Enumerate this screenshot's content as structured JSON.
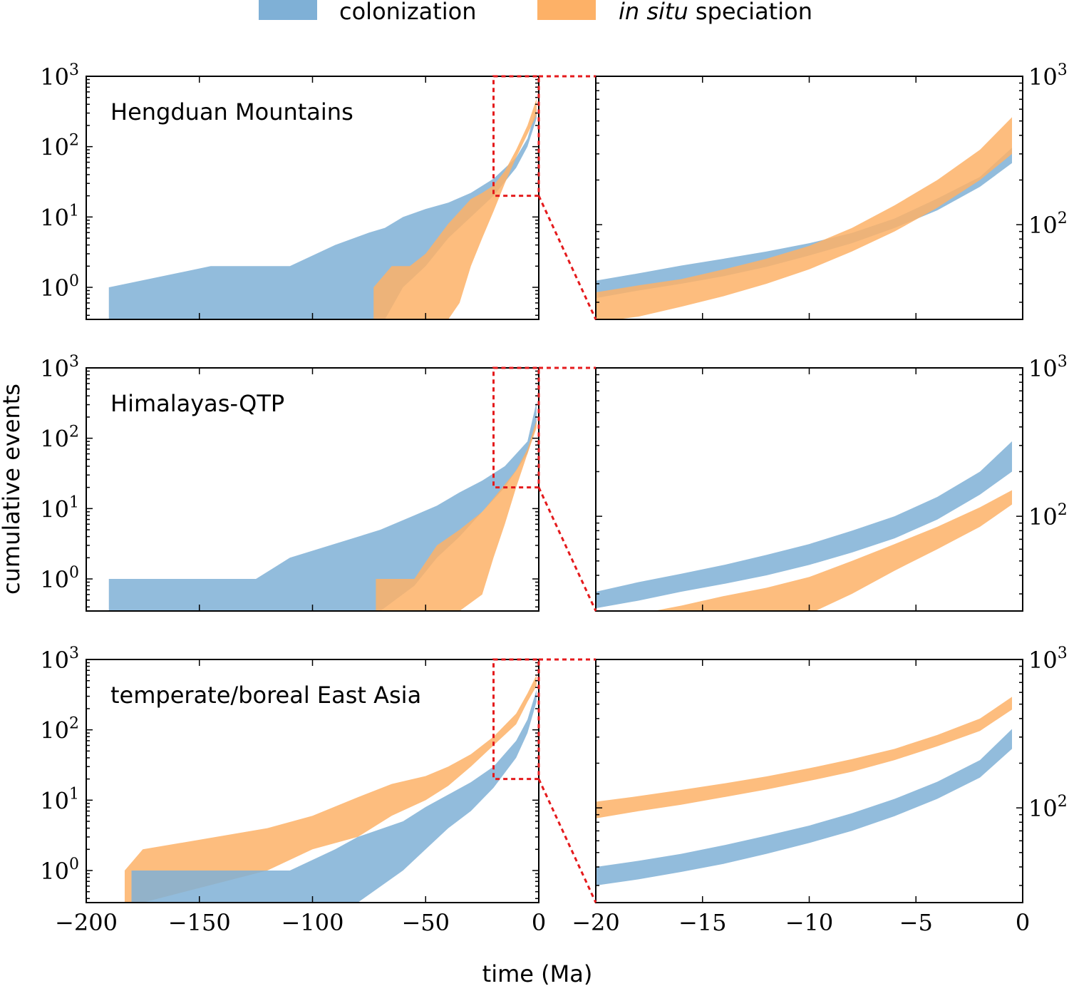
{
  "colors": {
    "colonization": "#7fb0d6",
    "speciation": "#fdb167",
    "zoom_line": "#e41a1c",
    "axis": "#000000"
  },
  "legend": {
    "items": [
      {
        "key": "colonization",
        "label": "colonization"
      },
      {
        "key": "speciation",
        "label_italic": "in situ",
        "label_rest": " speciation"
      }
    ]
  },
  "axes_labels": {
    "ylabel": "cumulative events",
    "xlabel": "time (Ma)"
  },
  "chart_data": {
    "type": "area",
    "y_scale": "log",
    "left_xlim": [
      -200,
      0
    ],
    "right_xlim": [
      -20,
      0
    ],
    "left_ylim": [
      0.35,
      1000
    ],
    "right_ylim": [
      23,
      1000
    ],
    "left_xticks": [
      -200,
      -150,
      -100,
      -50,
      0
    ],
    "right_xticks": [
      -20,
      -15,
      -10,
      -5,
      0
    ],
    "left_xtick_labels": [
      "−200",
      "−150",
      "−100",
      "−50",
      "0"
    ],
    "right_xtick_labels": [
      "−20",
      "−15",
      "−10",
      "−5",
      "0"
    ],
    "left_yticks": [
      1,
      10,
      100,
      1000
    ],
    "left_ytick_labels": [
      {
        "base": "10",
        "exp": "0"
      },
      {
        "base": "10",
        "exp": "1"
      },
      {
        "base": "10",
        "exp": "2"
      },
      {
        "base": "10",
        "exp": "3"
      }
    ],
    "right_yticks": [
      100,
      1000
    ],
    "right_ytick_labels": [
      {
        "base": "10",
        "exp": "2"
      },
      {
        "base": "10",
        "exp": "3"
      }
    ],
    "zoom_box": {
      "x": [
        -20,
        0
      ],
      "y": [
        20,
        1000
      ]
    },
    "panels": [
      {
        "region": "Hengduan Mountains",
        "colonization": {
          "x": [
            -190,
            -145,
            -110,
            -90,
            -75,
            -68,
            -60,
            -50,
            -40,
            -30,
            -20,
            -10,
            -5,
            -1
          ],
          "lower": [
            0.35,
            0.35,
            0.35,
            0.35,
            0.35,
            0.35,
            1,
            2,
            5,
            10,
            20,
            50,
            100,
            250
          ],
          "upper": [
            1,
            2,
            2,
            4,
            6,
            7,
            10,
            13,
            16,
            22,
            35,
            70,
            130,
            350
          ]
        },
        "speciation": {
          "x": [
            -73,
            -65,
            -57,
            -50,
            -40,
            -35,
            -30,
            -25,
            -20,
            -15,
            -10,
            -5,
            -1
          ],
          "lower": [
            0.35,
            0.35,
            0.35,
            0.35,
            0.35,
            0.6,
            2,
            5,
            12,
            30,
            70,
            150,
            280
          ],
          "upper": [
            1,
            2,
            2,
            3,
            8,
            12,
            18,
            22,
            28,
            45,
            90,
            200,
            480
          ]
        },
        "zoom": {
          "colonization": {
            "x": [
              -20,
              -18,
              -16,
              -14,
              -12,
              -10,
              -8,
              -6,
              -4,
              -2,
              -0.5
            ],
            "lower": [
              32,
              36,
              40,
              45,
              52,
              62,
              75,
              95,
              125,
              180,
              260
            ],
            "upper": [
              42,
              47,
              53,
              59,
              66,
              75,
              88,
              110,
              150,
              210,
              330
            ]
          },
          "speciation": {
            "x": [
              -20,
              -18,
              -16,
              -14,
              -12,
              -10,
              -8,
              -6,
              -4,
              -2,
              -0.5
            ],
            "lower": [
              22,
              24,
              28,
              33,
              40,
              50,
              66,
              90,
              130,
              200,
              300
            ],
            "upper": [
              35,
              39,
              43,
              50,
              59,
              72,
              95,
              135,
              200,
              320,
              530
            ]
          }
        }
      },
      {
        "region": "Himalayas-QTP",
        "colonization": {
          "x": [
            -190,
            -125,
            -110,
            -70,
            -55,
            -45,
            -35,
            -25,
            -15,
            -5,
            -1
          ],
          "lower": [
            0.35,
            0.35,
            0.35,
            0.35,
            0.8,
            2,
            4,
            9,
            20,
            60,
            160
          ],
          "upper": [
            1,
            1,
            2,
            5,
            8,
            11,
            17,
            25,
            40,
            90,
            330
          ]
        },
        "speciation": {
          "x": [
            -72,
            -55,
            -45,
            -35,
            -25,
            -20,
            -15,
            -10,
            -5,
            -1
          ],
          "lower": [
            0.35,
            0.35,
            0.35,
            0.35,
            0.6,
            2,
            6,
            20,
            60,
            140
          ],
          "upper": [
            1,
            1,
            3,
            5,
            9,
            14,
            22,
            35,
            70,
            180
          ]
        },
        "zoom": {
          "colonization": {
            "x": [
              -20,
              -18,
              -16,
              -14,
              -12,
              -10,
              -8,
              -6,
              -4,
              -2,
              -0.5
            ],
            "lower": [
              24,
              27,
              31,
              35,
              40,
              47,
              57,
              71,
              95,
              140,
              200
            ],
            "upper": [
              31,
              36,
              41,
              47,
              55,
              65,
              80,
              100,
              135,
              200,
              320
            ]
          },
          "speciation": {
            "x": [
              -18,
              -16,
              -14,
              -12,
              -10,
              -8,
              -6,
              -4,
              -2,
              -0.5
            ],
            "lower": [
              22,
              22,
              22,
              22,
              22,
              30,
              43,
              60,
              85,
              120
            ],
            "upper": [
              22,
              25,
              29,
              33,
              39,
              50,
              65,
              85,
              115,
              150
            ]
          }
        }
      },
      {
        "region": "temperate/boreal East Asia",
        "colonization": {
          "x": [
            -180,
            -110,
            -90,
            -80,
            -60,
            -50,
            -40,
            -30,
            -20,
            -10,
            -5,
            -1
          ],
          "lower": [
            0.35,
            0.35,
            0.35,
            0.35,
            1,
            2,
            4,
            7,
            15,
            40,
            90,
            250
          ],
          "upper": [
            1,
            1,
            2,
            3,
            5,
            8,
            12,
            18,
            30,
            70,
            140,
            370
          ]
        },
        "speciation": {
          "x": [
            -183,
            -175,
            -120,
            -100,
            -80,
            -65,
            -50,
            -40,
            -30,
            -20,
            -10,
            -5,
            -1
          ],
          "lower": [
            0.35,
            0.35,
            1,
            2,
            3,
            6,
            10,
            16,
            30,
            60,
            120,
            250,
            420
          ],
          "upper": [
            1,
            2,
            4,
            6,
            11,
            17,
            22,
            30,
            45,
            80,
            170,
            330,
            600
          ]
        },
        "zoom": {
          "colonization": {
            "x": [
              -20,
              -18,
              -16,
              -14,
              -12,
              -10,
              -8,
              -6,
              -4,
              -2,
              -0.5
            ],
            "lower": [
              30,
              33,
              37,
              42,
              49,
              58,
              70,
              88,
              115,
              160,
              250
            ],
            "upper": [
              40,
              44,
              49,
              56,
              65,
              76,
              92,
              115,
              150,
              210,
              340
            ]
          },
          "speciation": {
            "x": [
              -20,
              -18,
              -16,
              -14,
              -12,
              -10,
              -8,
              -6,
              -4,
              -2,
              -0.5
            ],
            "lower": [
              85,
              95,
              105,
              118,
              133,
              152,
              175,
              210,
              260,
              330,
              460
            ],
            "upper": [
              110,
              120,
              132,
              146,
              163,
              185,
              213,
              250,
              310,
              400,
              560
            ]
          }
        }
      }
    ]
  }
}
